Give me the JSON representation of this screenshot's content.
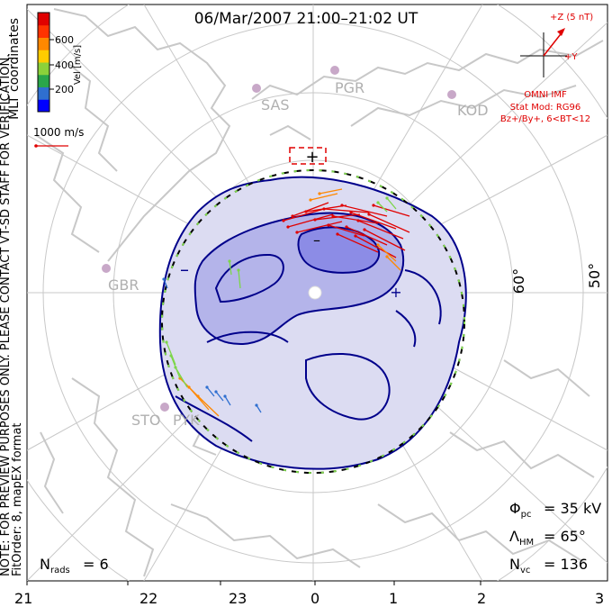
{
  "title": "06/Mar/2007 21:00–21:02 UT",
  "coordinate_label": "MLT coordinates",
  "note_line1": "NOTE: FOR PREVIEW PURPOSES ONLY. PLEASE CONTACT VT-SD STAFF FOR VERIFICATION.",
  "note_line2": "FitOrder: 8, mapEX format",
  "velocity_scale": {
    "axis_label": "Vel [m/s]",
    "ticks": [
      "600",
      "400",
      "200"
    ],
    "colors": [
      "#0000ff",
      "#2f6fd0",
      "#2aa64a",
      "#8bd13a",
      "#ffcc00",
      "#ff8800",
      "#ff3300",
      "#e00000"
    ],
    "reference_vector_label": "1000 m/s"
  },
  "imf": {
    "plus_z": "+Z (5 nT)",
    "plus_y": "+Y",
    "label": "OMNI IMF",
    "stat_mod": "Stat Mod: RG96",
    "conditions": "Bz+/By+, 6<BT<12",
    "color": "#e00000"
  },
  "stations": [
    "SAS",
    "PGR",
    "KOD",
    "GBR",
    "STO",
    "PYK"
  ],
  "latitude_labels": [
    "60°",
    "50°"
  ],
  "mlt_ticks": [
    "21",
    "22",
    "23",
    "0",
    "1",
    "2",
    "3"
  ],
  "potential_labels": {
    "min_marker": "–",
    "max_marker": "+",
    "dawn_sign": "–",
    "dusk_sign": "+"
  },
  "stats": {
    "phi_sym": "Φ",
    "phi_sub": "pc",
    "phi_value": "= 35 kV",
    "lambda_sym": "Λ",
    "lambda_sub": "HM",
    "lambda_value": "= 65°",
    "nvc_sym": "N",
    "nvc_sub": "vc",
    "nvc_value": "= 136",
    "nrads_sym": "N",
    "nrads_sub": "rads",
    "nrads_value": "= 6"
  },
  "colors": {
    "coastline": "#c8c8c8",
    "grid": "#c8c8c8",
    "contour": "#00008b",
    "fill_outer": "#dcdcf2",
    "fill_mid": "#b4b4ea",
    "fill_inner": "#8c8ce6",
    "boundary_dash": "#7dd64a"
  }
}
